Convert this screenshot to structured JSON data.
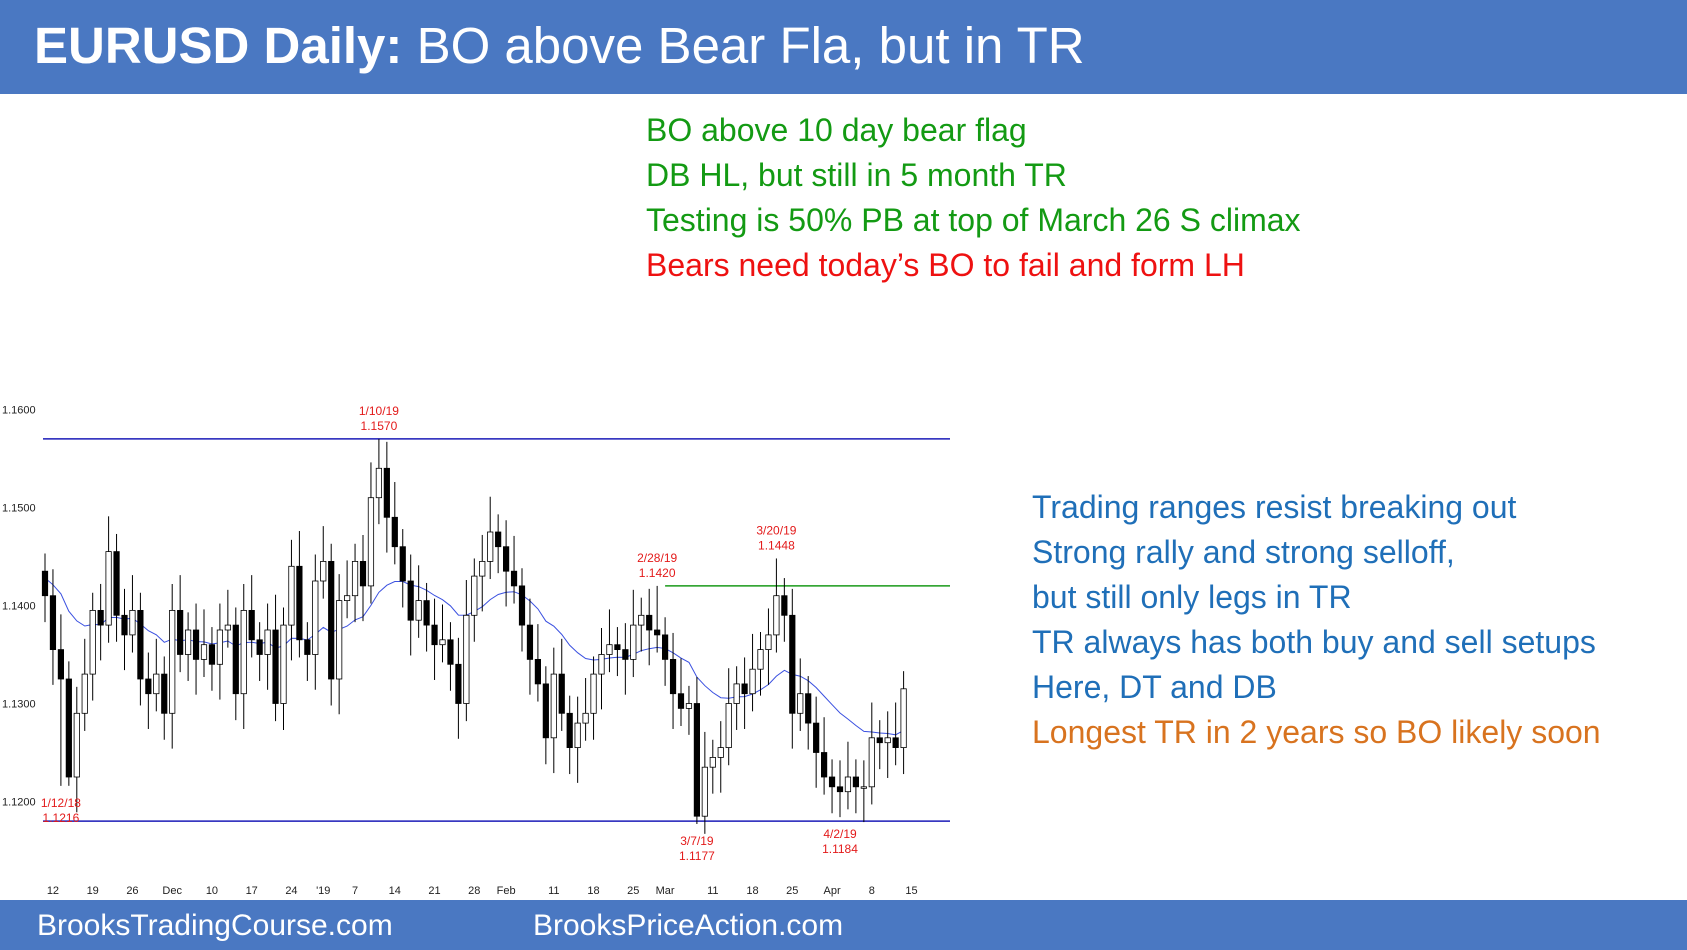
{
  "header": {
    "title_bold": "EURUSD Daily:",
    "title_rest": " BO above Bear Fla, but in TR"
  },
  "notes_top": [
    {
      "text": "BO above 10 day bear flag",
      "color": "green"
    },
    {
      "text": "DB HL, but still in 5 month TR",
      "color": "green"
    },
    {
      "text": "Testing is 50% PB at top of March 26 S climax",
      "color": "green"
    },
    {
      "text": "Bears need today’s BO to fail and form LH",
      "color": "red"
    }
  ],
  "notes_right": [
    {
      "text": "Trading ranges resist breaking out",
      "color": "blue"
    },
    {
      "text": "Strong rally and strong selloff,",
      "color": "blue"
    },
    {
      "text": "but still only legs in TR",
      "color": "blue"
    },
    {
      "text": "TR always has both buy and sell setups",
      "color": "blue"
    },
    {
      "text": "Here, DT and DB",
      "color": "blue"
    },
    {
      "text": "Longest TR in 2 years so BO likely soon",
      "color": "orange"
    }
  ],
  "footer": {
    "left": "BrooksTradingCourse.com",
    "right": "BrooksPriceAction.com"
  },
  "colors": {
    "header_bg": "#4a78c2",
    "range_line": "#1b1bb8",
    "flag_line": "#1a9a1a",
    "ema_line": "#3a50e0",
    "annotation": "#e31a1a"
  },
  "chart_data": {
    "type": "candlestick",
    "title": "",
    "xlabel": "",
    "ylabel": "",
    "ylim": [
      1.1155,
      1.164
    ],
    "yticks": [
      "1.1600",
      "1.1500",
      "1.1400",
      "1.1300",
      "1.1200"
    ],
    "ytick_values": [
      1.16,
      1.15,
      1.14,
      1.13,
      1.12
    ],
    "xticks": [
      {
        "label": "12",
        "bar": 1
      },
      {
        "label": "19",
        "bar": 6
      },
      {
        "label": "26",
        "bar": 11
      },
      {
        "label": "Dec",
        "bar": 16
      },
      {
        "label": "10",
        "bar": 21
      },
      {
        "label": "17",
        "bar": 26
      },
      {
        "label": "24",
        "bar": 31
      },
      {
        "label": "'19",
        "bar": 35
      },
      {
        "label": "7",
        "bar": 39
      },
      {
        "label": "14",
        "bar": 44
      },
      {
        "label": "21",
        "bar": 49
      },
      {
        "label": "28",
        "bar": 54
      },
      {
        "label": "Feb",
        "bar": 58
      },
      {
        "label": "11",
        "bar": 64
      },
      {
        "label": "18",
        "bar": 69
      },
      {
        "label": "25",
        "bar": 74
      },
      {
        "label": "Mar",
        "bar": 78
      },
      {
        "label": "11",
        "bar": 84
      },
      {
        "label": "18",
        "bar": 89
      },
      {
        "label": "25",
        "bar": 94
      },
      {
        "label": "Apr",
        "bar": 99
      },
      {
        "label": "8",
        "bar": 104
      },
      {
        "label": "15",
        "bar": 109
      }
    ],
    "horizontal_lines": [
      {
        "name": "range-top",
        "value": 1.157,
        "color": "range_line"
      },
      {
        "name": "range-bottom",
        "value": 1.118,
        "color": "range_line"
      },
      {
        "name": "bear-flag-top",
        "value": 1.142,
        "start_bar": 78,
        "color": "flag_line"
      }
    ],
    "annotations": [
      {
        "name": "high-jan-10",
        "date": "1/10/19",
        "price": "1.1570",
        "bar": 42,
        "anchor": 1.157,
        "pos": "above"
      },
      {
        "name": "low-jan-12",
        "date": "1/12/18",
        "price": "1.1216",
        "bar": 2,
        "anchor": 1.1216,
        "pos": "below"
      },
      {
        "name": "high-feb-28",
        "date": "2/28/19",
        "price": "1.1420",
        "bar": 77,
        "anchor": 1.142,
        "pos": "above"
      },
      {
        "name": "high-mar-20",
        "date": "3/20/19",
        "price": "1.1448",
        "bar": 92,
        "anchor": 1.1448,
        "pos": "above"
      },
      {
        "name": "low-mar-7",
        "date": "3/7/19",
        "price": "1.1177",
        "bar": 82,
        "anchor": 1.1177,
        "pos": "below"
      },
      {
        "name": "low-apr-2",
        "date": "4/2/19",
        "price": "1.1184",
        "bar": 100,
        "anchor": 1.1184,
        "pos": "below"
      }
    ],
    "closes": [
      1.141,
      1.1355,
      1.1325,
      1.1225,
      1.129,
      1.133,
      1.1395,
      1.138,
      1.1455,
      1.139,
      1.137,
      1.1395,
      1.1325,
      1.131,
      1.133,
      1.129,
      1.1395,
      1.135,
      1.1375,
      1.1345,
      1.136,
      1.134,
      1.1375,
      1.138,
      1.131,
      1.1395,
      1.1365,
      1.135,
      1.1375,
      1.13,
      1.138,
      1.144,
      1.1365,
      1.135,
      1.1425,
      1.1445,
      1.1325,
      1.1405,
      1.141,
      1.1445,
      1.142,
      1.151,
      1.154,
      1.149,
      1.146,
      1.1425,
      1.1385,
      1.1405,
      1.138,
      1.136,
      1.1365,
      1.134,
      1.13,
      1.139,
      1.143,
      1.1445,
      1.1475,
      1.146,
      1.1435,
      1.142,
      1.138,
      1.1345,
      1.132,
      1.1265,
      1.133,
      1.129,
      1.1255,
      1.128,
      1.129,
      1.133,
      1.135,
      1.136,
      1.1355,
      1.1345,
      1.138,
      1.139,
      1.1375,
      1.137,
      1.1345,
      1.131,
      1.1295,
      1.13,
      1.1185,
      1.1235,
      1.1245,
      1.1255,
      1.13,
      1.132,
      1.131,
      1.1335,
      1.1355,
      1.137,
      1.141,
      1.139,
      1.129,
      1.131,
      1.128,
      1.125,
      1.1225,
      1.1215,
      1.121,
      1.1225,
      1.1215,
      1.1215,
      1.1265,
      1.126,
      1.1265,
      1.1255,
      1.1315
    ]
  }
}
